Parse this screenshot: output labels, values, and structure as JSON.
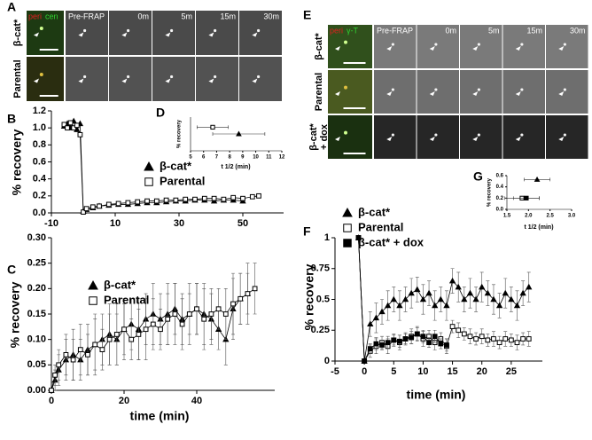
{
  "panels": {
    "A": "A",
    "B": "B",
    "C": "C",
    "D": "D",
    "E": "E",
    "F": "F",
    "G": "G"
  },
  "micrographs": {
    "A": {
      "channels": [
        {
          "name": "peri",
          "color": "#e02020"
        },
        {
          "name": "cen",
          "color": "#30d030"
        }
      ],
      "timepoints": [
        "Pre-FRAP",
        "0m",
        "5m",
        "15m",
        "30m"
      ],
      "rows": [
        [
          "β-cat*"
        ],
        [
          "Parental"
        ]
      ]
    },
    "E": {
      "channels": [
        {
          "name": "peri",
          "color": "#e02020"
        },
        {
          "name": "γ-T",
          "color": "#30d030"
        }
      ],
      "timepoints": [
        "Pre-FRAP",
        "0m",
        "5m",
        "15m",
        "30m"
      ],
      "rows": [
        [
          "β-cat*"
        ],
        [
          "Parental"
        ],
        [
          "β-cat*",
          "+ dox"
        ]
      ]
    }
  },
  "chart_data": [
    {
      "type": "line",
      "ylabel": "% recovery",
      "legend": "upper right",
      "xlim": [
        -10,
        60
      ],
      "xticks": [
        -10,
        10,
        30,
        50
      ],
      "ylim": [
        0,
        1.2
      ],
      "yticks": [
        {
          "value": 0,
          "label": "0.0"
        },
        {
          "value": 0.2,
          "label": "0.2"
        },
        {
          "value": 0.4,
          "label": "0.4"
        },
        {
          "value": 0.6,
          "label": "0.6"
        },
        {
          "value": 0.8,
          "label": "0.8"
        },
        {
          "value": 1.0,
          "label": "1.0"
        },
        {
          "value": 1.2,
          "label": "1.2"
        }
      ],
      "x": [
        -6,
        -5,
        -4,
        -3,
        -2,
        -1,
        0,
        1,
        3,
        5,
        8,
        11,
        14,
        17,
        20,
        23,
        26,
        29,
        32,
        35,
        38,
        41,
        44,
        47,
        50,
        53,
        55
      ],
      "series": [
        {
          "name": "β-cat*",
          "color": "#000000",
          "marker": "triangle",
          "filled": true,
          "values": [
            1.02,
            1.05,
            1.0,
            1.08,
            0.98,
            1.05,
            0.02,
            0.04,
            0.06,
            0.08,
            0.09,
            0.1,
            0.1,
            0.11,
            0.12,
            0.12,
            0.13,
            0.14,
            0.14,
            0.15,
            0.15,
            0.14,
            0.15,
            0.15,
            0.14,
            null,
            null
          ]
        },
        {
          "name": "Parental",
          "color": "#000000",
          "marker": "square",
          "filled": false,
          "values": [
            1.04,
            1.0,
            1.06,
            1.0,
            1.03,
            0.92,
            0.01,
            0.05,
            0.07,
            0.08,
            0.1,
            0.11,
            0.12,
            0.13,
            0.14,
            0.14,
            0.15,
            0.15,
            0.16,
            0.16,
            0.17,
            0.17,
            0.16,
            0.18,
            0.17,
            0.19,
            0.2
          ]
        }
      ]
    },
    {
      "type": "scatter",
      "xlabel": "t 1/2 (min)",
      "ylabel": "% recovery",
      "xlim": [
        5,
        12
      ],
      "xticks": [
        5,
        6,
        7,
        8,
        9,
        10,
        11,
        12
      ],
      "ylim": [
        0.1,
        0.2
      ],
      "series": [
        {
          "name": "β-cat*",
          "color": "#000000",
          "marker": "triangle",
          "filled": true,
          "x": [
            8.7
          ],
          "values": [
            0.15
          ],
          "xerr": [
            2.0
          ]
        },
        {
          "name": "Parental",
          "color": "#000000",
          "marker": "square",
          "filled": false,
          "x": [
            6.7
          ],
          "values": [
            0.17
          ],
          "xerr": [
            1.2
          ]
        }
      ]
    },
    {
      "type": "line",
      "xlabel": "time (min)",
      "ylabel": "% recovery",
      "legend": "upper left",
      "xlim": [
        0,
        60
      ],
      "xticks": [
        0,
        20,
        40
      ],
      "ylim": [
        0,
        0.3
      ],
      "yticks": [
        {
          "value": 0,
          "label": "0.00"
        },
        {
          "value": 0.05,
          "label": "0.05"
        },
        {
          "value": 0.1,
          "label": "0.10"
        },
        {
          "value": 0.15,
          "label": "0.15"
        },
        {
          "value": 0.2,
          "label": "0.20"
        },
        {
          "value": 0.25,
          "label": "0.25"
        },
        {
          "value": 0.3,
          "label": "0.30"
        }
      ],
      "x": [
        0,
        1,
        2,
        4,
        6,
        8,
        10,
        12,
        14,
        16,
        18,
        20,
        22,
        24,
        26,
        28,
        30,
        32,
        34,
        36,
        38,
        40,
        42,
        44,
        46,
        48,
        50,
        52,
        54,
        56
      ],
      "series": [
        {
          "name": "β-cat*",
          "color": "#000000",
          "marker": "triangle",
          "filled": true,
          "values": [
            0,
            0.02,
            0.04,
            0.06,
            0.07,
            0.06,
            0.08,
            0.09,
            0.1,
            0.11,
            0.1,
            0.12,
            0.13,
            0.12,
            0.14,
            0.15,
            0.14,
            0.15,
            0.16,
            0.14,
            0.15,
            0.16,
            0.15,
            0.14,
            0.12,
            0.1,
            0.16,
            0.18,
            0.19,
            null
          ],
          "errors": [
            0,
            0.02,
            0.03,
            0.04,
            0.05,
            0.04,
            0.05,
            0.06,
            0.05,
            0.06,
            0.05,
            0.06,
            0.05,
            0.06,
            0.05,
            0.06,
            0.05,
            0.06,
            0.05,
            0.05,
            0.06,
            0.05,
            0.06,
            0.05,
            0.04,
            0.05,
            0.06,
            0.05,
            0.06,
            null
          ]
        },
        {
          "name": "Parental",
          "color": "#000000",
          "marker": "square",
          "filled": false,
          "values": [
            0,
            0.03,
            0.05,
            0.07,
            0.06,
            0.08,
            0.07,
            0.09,
            0.08,
            0.1,
            0.11,
            0.12,
            0.1,
            0.11,
            0.12,
            0.13,
            0.12,
            0.14,
            0.15,
            0.13,
            0.15,
            0.16,
            0.14,
            0.15,
            0.16,
            0.15,
            0.17,
            0.18,
            0.19,
            0.2
          ],
          "errors": [
            0,
            0.02,
            0.03,
            0.04,
            0.04,
            0.05,
            0.04,
            0.05,
            0.04,
            0.05,
            0.06,
            0.05,
            0.04,
            0.05,
            0.06,
            0.05,
            0.04,
            0.05,
            0.06,
            0.05,
            0.04,
            0.05,
            0.06,
            0.05,
            0.04,
            0.05,
            0.06,
            0.05,
            0.04,
            0.05
          ]
        }
      ]
    },
    {
      "type": "line",
      "xlabel": "time (min)",
      "ylabel": "% recovery",
      "legend": "upper left",
      "xlim": [
        -5,
        30
      ],
      "xticks": [
        -5,
        0,
        5,
        10,
        15,
        20,
        25
      ],
      "ylim": [
        0,
        1
      ],
      "yticks": [
        0,
        0.25,
        0.5,
        0.75,
        1
      ],
      "x": [
        -1,
        0,
        1,
        2,
        3,
        4,
        5,
        6,
        7,
        8,
        9,
        10,
        11,
        12,
        13,
        14,
        15,
        16,
        17,
        18,
        19,
        20,
        21,
        22,
        23,
        24,
        25,
        26,
        27,
        28
      ],
      "series": [
        {
          "name": "β-cat*",
          "color": "#000000",
          "marker": "triangle",
          "filled": true,
          "values": [
            1,
            0,
            0.3,
            0.35,
            0.4,
            0.45,
            0.5,
            0.45,
            0.5,
            0.55,
            0.58,
            0.5,
            0.55,
            0.45,
            0.5,
            0.45,
            0.65,
            0.6,
            0.5,
            0.55,
            0.5,
            0.6,
            0.55,
            0.5,
            0.45,
            0.55,
            0.5,
            0.45,
            0.55,
            0.6
          ],
          "errors": [
            0,
            0,
            0.1,
            0.12,
            0.1,
            0.12,
            0.1,
            0.12,
            0.1,
            0.12,
            0.1,
            0.12,
            0.1,
            0.12,
            0.1,
            0.12,
            0.1,
            0.12,
            0.1,
            0.12,
            0.1,
            0.12,
            0.1,
            0.12,
            0.1,
            0.12,
            0.1,
            0.12,
            0.1,
            0.12
          ]
        },
        {
          "name": "Parental",
          "color": "#000000",
          "marker": "square",
          "filled": false,
          "values": [
            1,
            0,
            0.08,
            0.12,
            0.15,
            0.12,
            0.17,
            0.15,
            0.18,
            0.2,
            0.22,
            0.18,
            0.2,
            0.15,
            0.18,
            0.12,
            0.28,
            0.25,
            0.22,
            0.2,
            0.18,
            0.2,
            0.17,
            0.18,
            0.15,
            0.18,
            0.17,
            0.15,
            0.18,
            0.18
          ],
          "errors": [
            0,
            0,
            0.05,
            0.06,
            0.05,
            0.06,
            0.05,
            0.06,
            0.05,
            0.06,
            0.05,
            0.06,
            0.05,
            0.06,
            0.05,
            0.06,
            0.05,
            0.06,
            0.05,
            0.06,
            0.05,
            0.06,
            0.05,
            0.06,
            0.05,
            0.06,
            0.05,
            0.06,
            0.05,
            0.06
          ]
        },
        {
          "name": "β-cat* + dox",
          "color": "#000000",
          "marker": "square",
          "filled": true,
          "values": [
            1,
            0,
            0.1,
            0.14,
            0.13,
            0.15,
            0.17,
            0.16,
            0.18,
            0.19,
            0.22,
            0.2,
            0.15,
            0.2,
            0.14,
            0.13,
            null,
            null,
            null,
            null,
            null,
            null,
            null,
            null,
            null,
            null,
            null,
            null,
            null,
            null
          ],
          "errors": [
            0,
            0,
            0.04,
            0.05,
            0.04,
            0.05,
            0.04,
            0.05,
            0.04,
            0.05,
            0.06,
            0.05,
            0.04,
            0.05,
            0.04,
            0.05,
            null,
            null,
            null,
            null,
            null,
            null,
            null,
            null,
            null,
            null,
            null,
            null,
            null,
            null
          ]
        }
      ]
    },
    {
      "type": "scatter",
      "xlabel": "t 1/2 (min)",
      "ylabel": "% recovery",
      "xlim": [
        1.5,
        3.0
      ],
      "xticks": [
        {
          "value": 1.5,
          "label": "1.5"
        },
        {
          "value": 2.0,
          "label": "2.0"
        },
        {
          "value": 2.5,
          "label": "2.5"
        },
        {
          "value": 3.0,
          "label": "3.0"
        }
      ],
      "ylim": [
        0,
        0.6
      ],
      "yticks": [
        {
          "value": 0,
          "label": "0.0"
        },
        {
          "value": 0.2,
          "label": "0.2"
        },
        {
          "value": 0.4,
          "label": "0.4"
        },
        {
          "value": 0.6,
          "label": "0.6"
        }
      ],
      "series": [
        {
          "name": "β-cat*",
          "color": "#000000",
          "marker": "triangle",
          "filled": true,
          "x": [
            2.2
          ],
          "values": [
            0.53
          ],
          "xerr": [
            0.3
          ]
        },
        {
          "name": "Parental",
          "color": "#000000",
          "marker": "square",
          "filled": false,
          "x": [
            1.85
          ],
          "values": [
            0.2
          ],
          "xerr": [
            0.4
          ]
        },
        {
          "name": "β-cat* + dox",
          "color": "#000000",
          "marker": "square",
          "filled": true,
          "x": [
            1.95
          ],
          "values": [
            0.2
          ],
          "xerr": [
            0.3
          ]
        }
      ]
    }
  ]
}
